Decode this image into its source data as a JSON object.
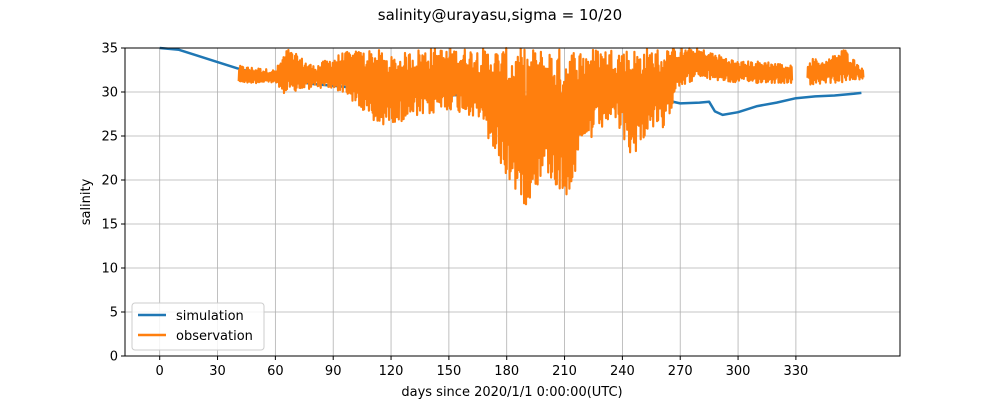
{
  "chart_data": {
    "type": "line",
    "title": "salinity@urayasu,sigma = 10/20",
    "xlabel": "days since 2020/1/1 0:00:00(UTC)",
    "ylabel": "salinity",
    "xlim": [
      -18,
      384
    ],
    "ylim": [
      0,
      35
    ],
    "xticks": [
      0,
      30,
      60,
      90,
      120,
      150,
      180,
      210,
      240,
      270,
      300,
      330
    ],
    "yticks": [
      0,
      5,
      10,
      15,
      20,
      25,
      30,
      35
    ],
    "grid": true,
    "legend_position": "lower-left",
    "series": [
      {
        "name": "simulation",
        "color": "#1f77b4",
        "x": [
          0,
          10,
          20,
          30,
          40,
          50,
          60,
          70,
          80,
          90,
          100,
          110,
          115,
          120,
          130,
          140,
          150,
          160,
          170,
          180,
          190,
          200,
          210,
          215,
          220,
          230,
          240,
          250,
          260,
          270,
          280,
          285,
          288,
          292,
          300,
          310,
          320,
          330,
          340,
          350,
          360,
          364
        ],
        "y": [
          35.0,
          34.8,
          34.1,
          33.4,
          32.7,
          32.1,
          31.6,
          31.2,
          30.9,
          30.7,
          30.5,
          29.6,
          29.4,
          29.6,
          29.9,
          29.8,
          29.6,
          29.7,
          29.9,
          29.4,
          29.3,
          29.0,
          28.2,
          27.6,
          28.0,
          29.0,
          29.3,
          29.5,
          29.2,
          28.7,
          28.8,
          28.9,
          27.8,
          27.4,
          27.7,
          28.4,
          28.8,
          29.3,
          29.5,
          29.6,
          29.8,
          29.9
        ]
      },
      {
        "name": "observation",
        "color": "#ff7f0e",
        "segments": [
          {
            "start": 41,
            "end": 328,
            "envelope": [
              [
                41,
                31.0,
                33.0
              ],
              [
                60,
                31.0,
                32.5
              ],
              [
                66,
                29.5,
                35.0
              ],
              [
                80,
                30.5,
                33.0
              ],
              [
                95,
                30.0,
                34.5
              ],
              [
                112,
                26.0,
                35.0
              ],
              [
                120,
                26.5,
                34.0
              ],
              [
                135,
                27.0,
                35.0
              ],
              [
                150,
                28.0,
                35.0
              ],
              [
                165,
                27.0,
                35.0
              ],
              [
                180,
                20.0,
                35.0
              ],
              [
                190,
                17.0,
                35.0
              ],
              [
                200,
                21.0,
                35.0
              ],
              [
                210,
                17.5,
                35.0
              ],
              [
                222,
                24.0,
                35.0
              ],
              [
                235,
                27.0,
                35.0
              ],
              [
                245,
                22.5,
                35.0
              ],
              [
                255,
                26.0,
                35.0
              ],
              [
                262,
                25.0,
                35.0
              ],
              [
                268,
                30.5,
                35.0
              ],
              [
                280,
                31.5,
                35.0
              ],
              [
                300,
                31.0,
                33.5
              ],
              [
                315,
                31.0,
                33.5
              ],
              [
                328,
                31.0,
                33.0
              ]
            ]
          },
          {
            "start": 336,
            "end": 365,
            "envelope": [
              [
                336,
                30.5,
                34.0
              ],
              [
                345,
                31.0,
                33.5
              ],
              [
                355,
                31.0,
                35.0
              ],
              [
                365,
                31.5,
                32.5
              ]
            ]
          }
        ]
      }
    ]
  }
}
